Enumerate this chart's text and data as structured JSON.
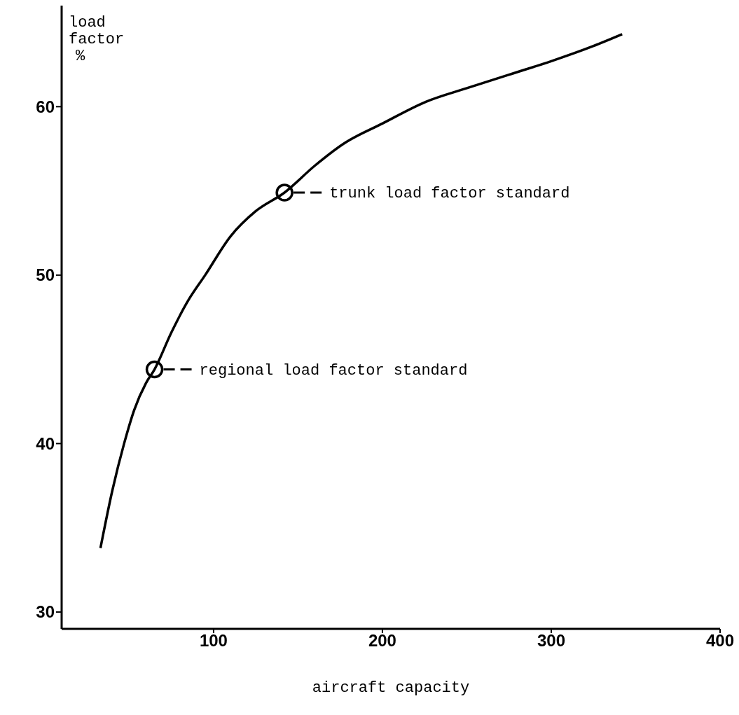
{
  "chart_data": {
    "type": "line",
    "xlabel": "aircraft capacity",
    "ylabel": "load factor %",
    "x": [
      33,
      40,
      47,
      53,
      60,
      65,
      75,
      85,
      95,
      110,
      125,
      142,
      160,
      177,
      200,
      226,
      250,
      275,
      300,
      325,
      342
    ],
    "series": [
      {
        "color": "#000000",
        "values": [
          33.8,
          37.2,
          40.0,
          42.0,
          43.6,
          44.4,
          46.6,
          48.5,
          50.0,
          52.3,
          53.8,
          54.9,
          56.5,
          57.8,
          59.0,
          60.3,
          61.1,
          61.9,
          62.7,
          63.6,
          64.3
        ]
      }
    ],
    "xlim": [
      10,
      400
    ],
    "xticks": [
      100,
      200,
      300,
      400
    ],
    "ylim": [
      29,
      66
    ],
    "yticks": [
      30,
      40,
      50,
      60
    ],
    "grid": false,
    "legend": false,
    "marker": "none",
    "line_style": "solid",
    "annotations": [
      {
        "text": "regional load factor standard",
        "x": 65,
        "y": 44.4
      },
      {
        "text": "trunk load factor standard",
        "x": 142,
        "y": 54.9
      }
    ]
  }
}
